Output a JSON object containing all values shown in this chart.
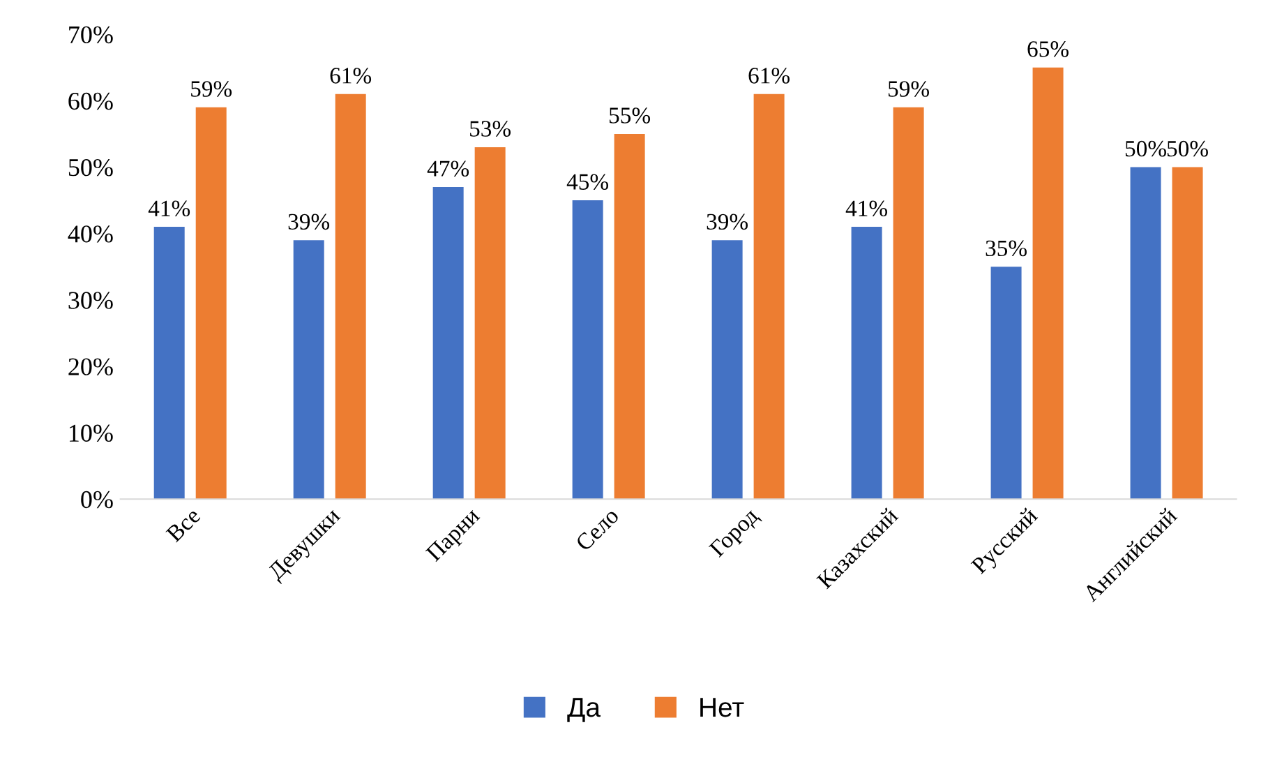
{
  "chart_data": {
    "type": "bar",
    "categories": [
      "Все",
      "Девушки",
      "Парни",
      "Село",
      "Город",
      "Казахский",
      "Русский",
      "Английский"
    ],
    "series": [
      {
        "name": "Да",
        "color": "#4472c4",
        "values": [
          41,
          39,
          47,
          45,
          39,
          41,
          35,
          50
        ],
        "value_labels": [
          "41%",
          "39%",
          "47%",
          "45%",
          "39%",
          "41%",
          "35%",
          "50%"
        ]
      },
      {
        "name": "Нет",
        "color": "#ed7d31",
        "values": [
          59,
          61,
          53,
          55,
          61,
          59,
          65,
          50
        ],
        "value_labels": [
          "59%",
          "61%",
          "53%",
          "55%",
          "61%",
          "59%",
          "65%",
          "50%"
        ]
      }
    ],
    "ylim": [
      0,
      70
    ],
    "yticks": [
      {
        "value": 0,
        "label": "0%"
      },
      {
        "value": 10,
        "label": "10%"
      },
      {
        "value": 20,
        "label": "20%"
      },
      {
        "value": 30,
        "label": "30%"
      },
      {
        "value": 40,
        "label": "40%"
      },
      {
        "value": 50,
        "label": "50%"
      },
      {
        "value": 60,
        "label": "60%"
      },
      {
        "value": 70,
        "label": "70%"
      }
    ],
    "grid": false,
    "legend": "bottom"
  }
}
